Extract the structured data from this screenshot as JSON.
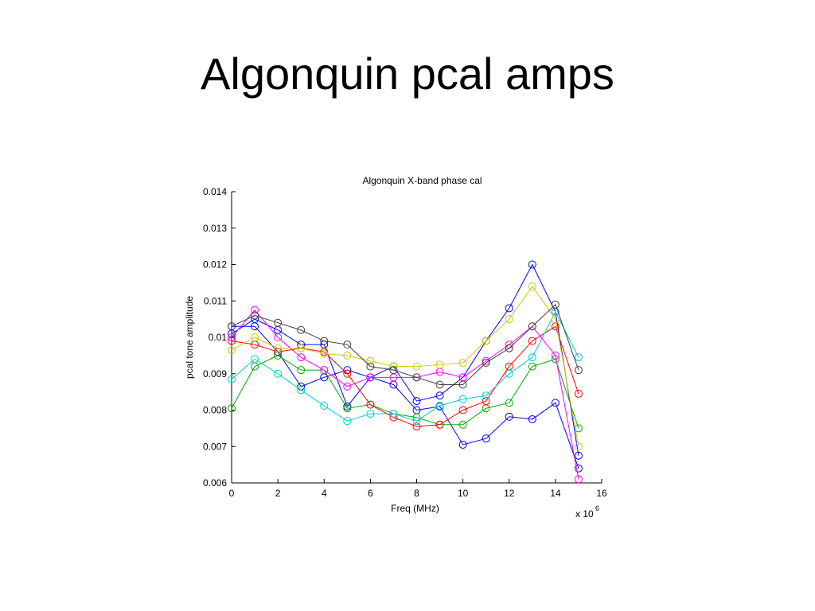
{
  "slide": {
    "title": "Algonquin pcal amps"
  },
  "chart_data": {
    "type": "line",
    "title": "Algonquin X-band phase cal",
    "xlabel": "Freq (MHz)",
    "ylabel": "pcal tone amplitude",
    "x_multiplier_label": "x 10",
    "x_multiplier_exp": "6",
    "xlim": [
      0,
      16
    ],
    "ylim": [
      0.006,
      0.014
    ],
    "xticks": [
      0,
      2,
      4,
      6,
      8,
      10,
      12,
      14,
      16
    ],
    "xtick_labels": [
      "0",
      "2",
      "4",
      "6",
      "8",
      "10",
      "12",
      "14",
      "16"
    ],
    "yticks": [
      0.006,
      0.007,
      0.008,
      0.009,
      0.01,
      0.011,
      0.012,
      0.013,
      0.014
    ],
    "ytick_labels": [
      "0.006",
      "0.007",
      "0.008",
      "0.009",
      "0.01",
      "0.011",
      "0.012",
      "0.013",
      "0.014"
    ],
    "grid": false,
    "marker": "circle",
    "x": [
      0,
      1,
      2,
      3,
      4,
      5,
      6,
      7,
      8,
      9,
      10,
      11,
      12,
      13,
      14,
      15
    ],
    "series": [
      {
        "color": "#0000ff",
        "values": [
          0.0101,
          0.0105,
          0.0102,
          0.0098,
          0.0098,
          0.0081,
          0.0089,
          0.0087,
          0.008,
          0.0081,
          0.00705,
          0.00722,
          0.00782,
          0.00775,
          0.0082,
          0.0064
        ]
      },
      {
        "color": "#0000ff",
        "values": [
          0.0103,
          0.0103,
          0.0096,
          0.00865,
          0.0089,
          0.0091,
          0.0089,
          0.0092,
          0.00825,
          0.0084,
          0.0089,
          0.0099,
          0.0108,
          0.012,
          0.0107,
          0.00675
        ]
      },
      {
        "color": "#00aa00",
        "values": [
          0.00805,
          0.0092,
          0.0095,
          0.0091,
          0.0091,
          0.00805,
          0.00815,
          0.0079,
          0.0078,
          0.0076,
          0.0076,
          0.00805,
          0.0082,
          0.0092,
          0.0094,
          0.0075
        ]
      },
      {
        "color": "#ff0000",
        "values": [
          0.0099,
          0.0098,
          0.0096,
          0.0097,
          0.0096,
          0.009,
          0.00815,
          0.0078,
          0.00755,
          0.0076,
          0.008,
          0.00825,
          0.0092,
          0.0099,
          0.0103,
          0.00845
        ]
      },
      {
        "color": "#00cccc",
        "values": [
          0.00885,
          0.0094,
          0.009,
          0.00855,
          0.00812,
          0.0077,
          0.0079,
          0.0079,
          0.0077,
          0.00812,
          0.0083,
          0.0084,
          0.009,
          0.00945,
          0.0107,
          0.00945
        ]
      },
      {
        "color": "#ff00ff",
        "values": [
          0.01,
          0.01075,
          0.01,
          0.00945,
          0.0091,
          0.00865,
          0.0089,
          0.0089,
          0.0089,
          0.00905,
          0.0089,
          0.00935,
          0.0098,
          0.0103,
          0.0095,
          0.0061
        ]
      },
      {
        "color": "#cccc00",
        "values": [
          0.00965,
          0.01,
          0.0097,
          0.0097,
          0.00955,
          0.0095,
          0.00935,
          0.0092,
          0.0092,
          0.00925,
          0.0093,
          0.0099,
          0.0105,
          0.0114,
          0.0105,
          0.007
        ]
      },
      {
        "color": "#404040",
        "values": [
          0.0103,
          0.0106,
          0.0104,
          0.0102,
          0.0099,
          0.0098,
          0.0092,
          0.0091,
          0.0089,
          0.0087,
          0.0087,
          0.0093,
          0.0097,
          0.0103,
          0.0109,
          0.0091
        ]
      }
    ]
  }
}
